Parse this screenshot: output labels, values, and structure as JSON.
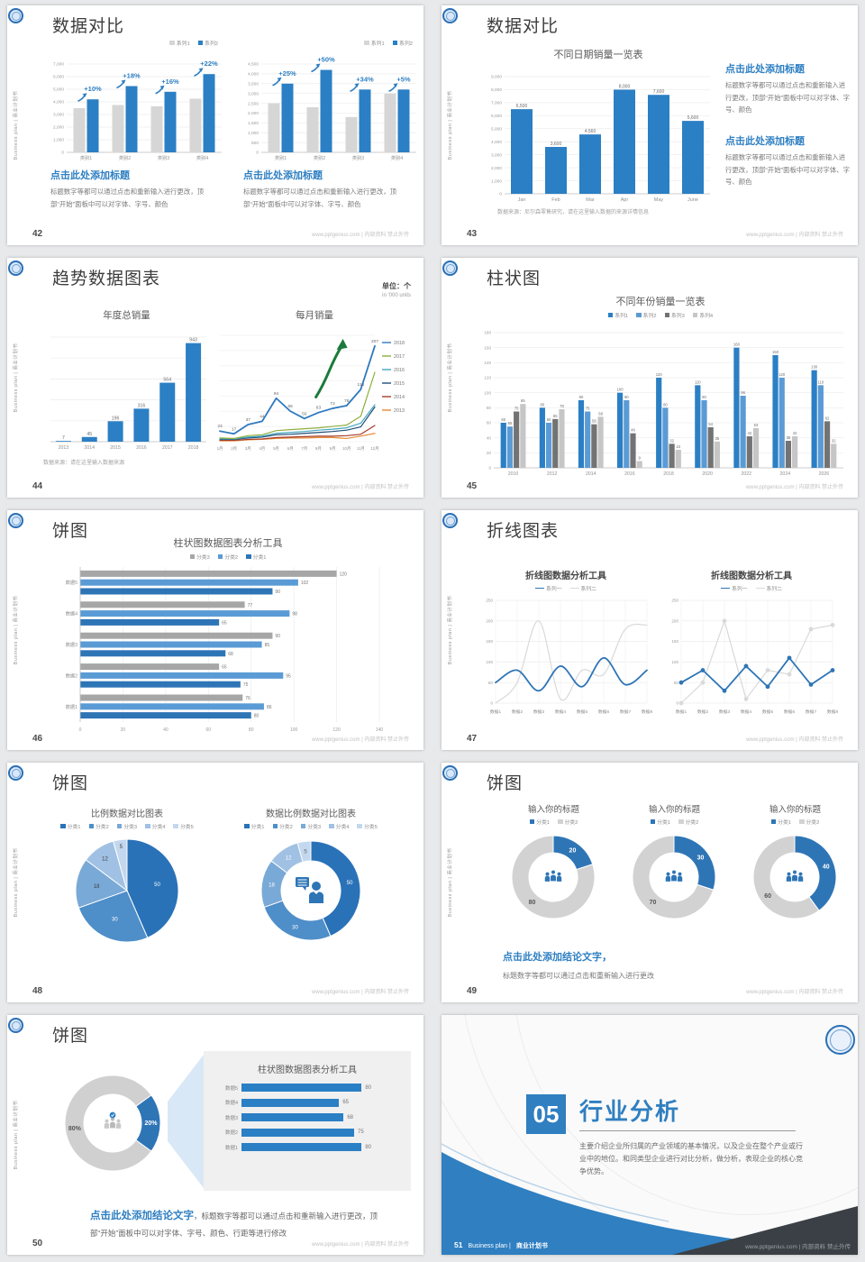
{
  "page": {
    "background": "#e8e9ea"
  },
  "common": {
    "side_label": "Business plan | 商业计划书",
    "footer_site": "www.pptgenius.com | 内部资料 禁止外传",
    "logo": "school-emblem"
  },
  "palette": {
    "blue": "#2b7fc4",
    "blue_dark": "#2e75b6",
    "blue_mid": "#5b9bd5",
    "gray_bar": "#d6d6d6",
    "gray_dark": "#737373",
    "gray_light": "#c6c6c6",
    "green_arrow": "#1b7a3b",
    "title_text": "#3d3d3d",
    "accent_text": "#2e7fc2",
    "body_text": "#7a7a7a",
    "footer_text": "#c2c2c2",
    "dark_corner": "#3a4045",
    "panel_bg": "#f0f0f0",
    "donut_gray": "#d2d2d2",
    "pie_blues": [
      "#2a72b8",
      "#4e8ec9",
      "#79a9d6",
      "#a0c1e3",
      "#c3d8ee"
    ],
    "line_colors_years": [
      "#2e79bf",
      "#8fae3e",
      "#45a8c0",
      "#1f4e79",
      "#a63a2a",
      "#e58b33"
    ]
  },
  "slides": [
    {
      "page_no": "42",
      "title": "数据对比",
      "blocks": [
        {
          "heading": "点击此处添加标题",
          "body": "标题数字等都可以通过点击和重新输入进行更改，顶部“开始”面板中可以对字体、字号、颜色"
        },
        {
          "heading": "点击此处添加标题",
          "body": "标题数字等都可以通过点击和重新输入进行更改，顶部“开始”面板中可以对字体、字号、颜色"
        }
      ]
    },
    {
      "page_no": "43",
      "title": "数据对比",
      "footnote": "数据来源：尼尔森零售研究，请在这里输入数据的来源详情信息",
      "blocks": [
        {
          "heading": "点击此处添加标题",
          "body": "标题数字等都可以通过点击和重新输入进行更改，顶部“开始”面板中可以对字体、字号、颜色"
        },
        {
          "heading": "点击此处添加标题",
          "body": "标题数字等都可以通过点击和重新输入进行更改，顶部“开始”面板中可以对字体、字号、颜色"
        }
      ]
    },
    {
      "page_no": "44",
      "title": "趋势数据图表",
      "unit_top": "单位：个",
      "unit_sub": "in '000 units",
      "footnote": "数据来源：请在这里输入数据来源"
    },
    {
      "page_no": "45",
      "title": "柱状图"
    },
    {
      "page_no": "46",
      "title": "饼图"
    },
    {
      "page_no": "47",
      "title": "折线图表"
    },
    {
      "page_no": "48",
      "title": "饼图"
    },
    {
      "page_no": "49",
      "title": "饼图",
      "conclusion_heading": "点击此处添加结论文字，",
      "conclusion_body": "标题数字等都可以通过点击和重新输入进行更改"
    },
    {
      "page_no": "50",
      "title": "饼图",
      "conclusion_heading": "点击此处添加结论文字",
      "conclusion_body": "，标题数字等都可以通过点击和重新输入进行更改，顶部“开始”面板中可以对字体、字号、颜色、行距等进行修改"
    },
    {
      "page_no": "51",
      "number": "05",
      "title": "行业分析",
      "body": "主要介绍企业所归属的产业领域的基本情况，以及企业在整个产业或行业中的地位。和同类型企业进行对比分析，做分析，表现企业的核心竞争优势。",
      "footer_brand": "Business plan |",
      "footer_book": "商业计划书"
    }
  ],
  "chart_data": {
    "c42a": {
      "type": "bar",
      "legend": [
        "系列1",
        "系列2"
      ],
      "categories": [
        "类别1",
        "类别2",
        "类别3",
        "类别4"
      ],
      "series": [
        {
          "name": "系列1",
          "values": [
            3500,
            3750,
            3650,
            4250
          ]
        },
        {
          "name": "系列2",
          "values": [
            4200,
            5250,
            4800,
            6200
          ]
        }
      ],
      "growth_labels": [
        "+10%",
        "+18%",
        "+16%",
        "+22%"
      ],
      "ylim": [
        0,
        7000
      ],
      "ystep": 1000
    },
    "c42b": {
      "type": "bar",
      "legend": [
        "系列1",
        "系列2"
      ],
      "categories": [
        "类别1",
        "类别2",
        "类别3",
        "类别4"
      ],
      "series": [
        {
          "name": "系列1",
          "values": [
            2500,
            2300,
            1800,
            3000
          ]
        },
        {
          "name": "系列2",
          "values": [
            3500,
            4200,
            3200,
            3200
          ]
        }
      ],
      "growth_labels": [
        "+25%",
        "+50%",
        "+34%",
        "+5%"
      ],
      "ylim": [
        0,
        4500
      ],
      "ystep": 500
    },
    "c43": {
      "type": "bar",
      "title": "不同日期销量一览表",
      "categories": [
        "Jan",
        "Feb",
        "Mar",
        "Apr",
        "May",
        "June"
      ],
      "values": [
        6500,
        3600,
        4560,
        8000,
        7600,
        5600
      ],
      "ylim": [
        0,
        9000
      ],
      "ystep": 1000
    },
    "c44a": {
      "type": "bar",
      "title": "年度总销量",
      "categories": [
        "2013",
        "2014",
        "2015",
        "2016",
        "2017",
        "2018"
      ],
      "values": [
        7,
        45,
        196,
        316,
        564,
        943
      ],
      "ylim": [
        0,
        1000
      ]
    },
    "c44b": {
      "type": "line",
      "title": "每月销量",
      "x": [
        "1月",
        "2月",
        "3月",
        "4月",
        "5月",
        "6月",
        "7月",
        "8月",
        "9月",
        "10月",
        "11月",
        "12月"
      ],
      "ylim": [
        0,
        230
      ],
      "series": [
        {
          "name": "2018",
          "values": [
            23,
            17,
            37,
            44,
            94,
            66,
            50,
            63,
            72,
            78,
            113,
            207
          ],
          "labeled": true
        },
        {
          "name": "2017",
          "values": [
            8,
            7,
            13,
            15,
            24,
            26,
            28,
            30,
            33,
            36,
            55,
            150
          ]
        },
        {
          "name": "2016",
          "values": [
            6,
            6,
            10,
            12,
            18,
            20,
            22,
            25,
            27,
            30,
            40,
            80
          ]
        },
        {
          "name": "2015",
          "values": [
            5,
            5,
            8,
            10,
            15,
            16,
            18,
            20,
            22,
            25,
            32,
            75
          ]
        },
        {
          "name": "2014",
          "values": [
            3,
            3,
            5,
            6,
            9,
            10,
            11,
            12,
            12,
            13,
            16,
            35
          ]
        },
        {
          "name": "2013",
          "values": [
            2,
            2,
            4,
            5,
            7,
            8,
            8,
            9,
            9,
            7,
            12,
            18
          ]
        }
      ],
      "annotation": "up-arrow"
    },
    "c45": {
      "type": "bar",
      "title": "不同年份销量一览表",
      "legend": [
        "系列1",
        "系列2",
        "系列3",
        "系列4"
      ],
      "categories": [
        "2010",
        "2012",
        "2014",
        "2016",
        "2018",
        "2020",
        "2022",
        "2024",
        "2026"
      ],
      "series": [
        {
          "name": "系列1",
          "values": [
            60,
            80,
            90,
            100,
            120,
            110,
            160,
            150,
            130
          ]
        },
        {
          "name": "系列2",
          "values": [
            55,
            60,
            75,
            90,
            80,
            90,
            96,
            120,
            110
          ]
        },
        {
          "name": "系列3",
          "values": [
            75,
            65,
            58,
            46,
            32,
            54,
            42,
            36,
            62
          ]
        },
        {
          "name": "系列4",
          "values": [
            85,
            78,
            68,
            9,
            24,
            35,
            53,
            42,
            32
          ]
        }
      ],
      "ylim": [
        0,
        180
      ],
      "ystep": 20
    },
    "c46": {
      "type": "hbar",
      "title": "柱状图数据图表分析工具",
      "legend": [
        "分类3",
        "分类2",
        "分类1"
      ],
      "categories": [
        "数据5",
        "数据4",
        "数据3",
        "数据2",
        "数据1"
      ],
      "series": [
        {
          "name": "分类3",
          "values": [
            120,
            77,
            90,
            65,
            76
          ]
        },
        {
          "name": "分类2",
          "values": [
            102,
            98,
            85,
            95,
            86
          ]
        },
        {
          "name": "分类1",
          "values": [
            90,
            65,
            68,
            75,
            80
          ]
        }
      ],
      "xlim": [
        0,
        140
      ],
      "xstep": 20
    },
    "c47a": {
      "type": "line",
      "title": "折线图数据分析工具",
      "legend": [
        "系列一",
        "系列二"
      ],
      "x": [
        "数据1",
        "数据2",
        "数据3",
        "数据4",
        "数据5",
        "数据6",
        "数据7",
        "数据8"
      ],
      "series": [
        {
          "name": "系列一",
          "values": [
            50,
            80,
            30,
            90,
            40,
            110,
            45,
            80
          ]
        },
        {
          "name": "系列二",
          "values": [
            0,
            50,
            200,
            10,
            80,
            70,
            180,
            190
          ]
        }
      ],
      "ylim": [
        0,
        250
      ],
      "ystep": 50,
      "style": "smooth"
    },
    "c47b": {
      "type": "line",
      "title": "折线图数据分析工具",
      "legend": [
        "系列一",
        "系列二"
      ],
      "x": [
        "数据1",
        "数据2",
        "数据3",
        "数据4",
        "数据5",
        "数据6",
        "数据7",
        "数据8"
      ],
      "series": [
        {
          "name": "系列一",
          "values": [
            50,
            80,
            30,
            90,
            40,
            110,
            45,
            80
          ]
        },
        {
          "name": "系列二",
          "values": [
            0,
            50,
            200,
            10,
            80,
            70,
            180,
            190
          ]
        }
      ],
      "ylim": [
        0,
        250
      ],
      "ystep": 50,
      "style": "markers"
    },
    "c48a": {
      "type": "pie",
      "title": "比例数据对比图表",
      "legend": [
        "分类1",
        "分类2",
        "分类3",
        "分类4",
        "分类5"
      ],
      "values": [
        50,
        30,
        18,
        12,
        5
      ]
    },
    "c48b": {
      "type": "donut",
      "title": "数据比例数据对比图表",
      "legend": [
        "分类1",
        "分类2",
        "分类3",
        "分类4",
        "分类5"
      ],
      "values": [
        50,
        30,
        18,
        12,
        5
      ],
      "center_icon": "presenter-icon"
    },
    "c49a": {
      "type": "donut",
      "title": "输入你的标题",
      "legend": [
        "分类1",
        "分类2"
      ],
      "values": [
        20,
        80
      ],
      "center_icon": "people-icon"
    },
    "c49b": {
      "type": "donut",
      "title": "输入你的标题",
      "legend": [
        "分类1",
        "分类2"
      ],
      "values": [
        30,
        70
      ],
      "center_icon": "people-icon"
    },
    "c49c": {
      "type": "donut",
      "title": "输入你的标题",
      "legend": [
        "分类1",
        "分类2"
      ],
      "values": [
        40,
        60
      ],
      "center_icon": "people-icon"
    },
    "c50a": {
      "type": "donut",
      "values": [
        20,
        80
      ],
      "labels": [
        "20%",
        "80%"
      ],
      "center_icon": "people-check-icon"
    },
    "c50b": {
      "type": "hbar",
      "title": "柱状图数据图表分析工具",
      "categories": [
        "数据5",
        "数据4",
        "数据3",
        "数据2",
        "数据1"
      ],
      "values": [
        80,
        65,
        68,
        75,
        80
      ],
      "xlim": [
        0,
        90
      ]
    }
  }
}
